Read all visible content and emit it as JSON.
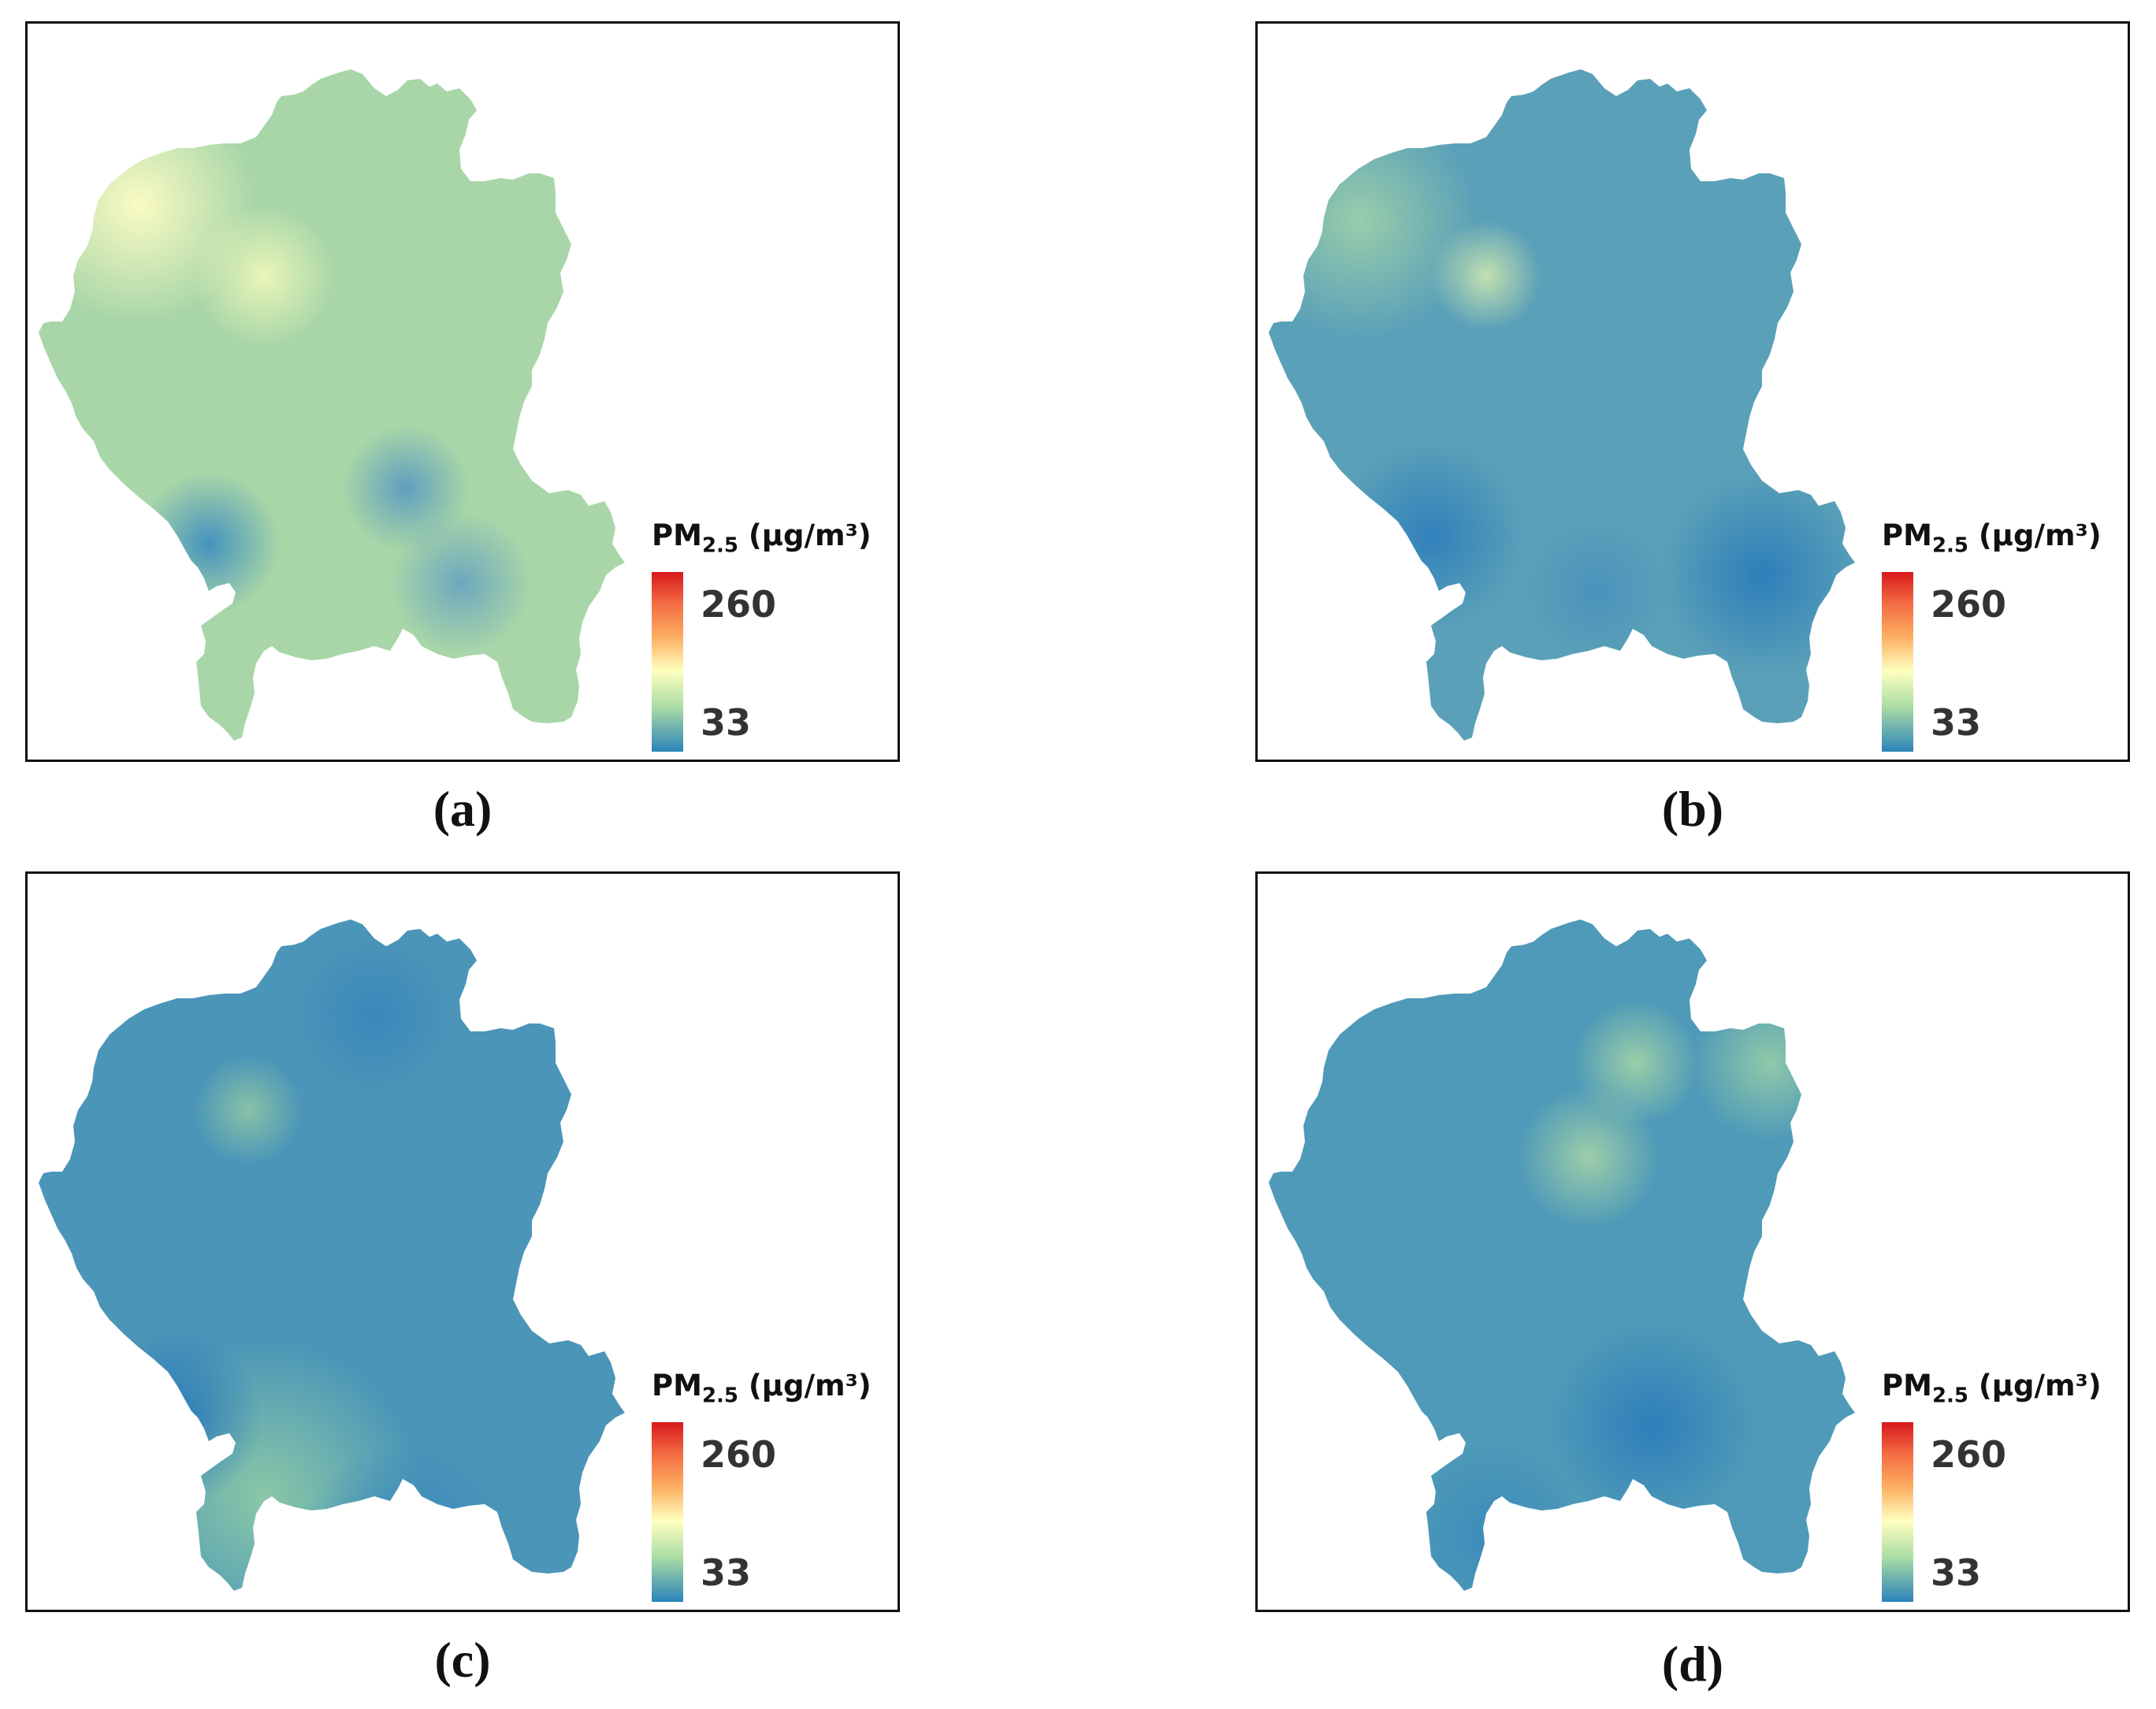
{
  "legend": {
    "title_main": "PM",
    "title_sub": "2.5",
    "title_unit": " (μg/m³)",
    "max_label": "260",
    "min_label": "33"
  },
  "panels": [
    {
      "caption": "(a)",
      "fill": "#a8d6a8",
      "spots": [
        {
          "color": "#fffdc4"
        },
        {
          "color": "#eef7b8"
        },
        {
          "color": "#3f8fbf"
        },
        {
          "color": "#5b9cbf"
        },
        {
          "color": "#6aa5bf"
        }
      ]
    },
    {
      "caption": "(b)",
      "fill": "#5aa0b8",
      "spots": [
        {
          "color": "#9ccfaa"
        },
        {
          "color": "#c9e4b0"
        },
        {
          "color": "#2f7fbb"
        },
        {
          "color": "#2b7dba"
        },
        {
          "color": "#4a92bd"
        }
      ]
    },
    {
      "caption": "(c)",
      "fill": "#4a95b8",
      "spots": [
        {
          "color": "#8ecba6"
        },
        {
          "color": "#8cc4a6"
        },
        {
          "color": "#2b79b8"
        },
        {
          "color": "#3a86bb"
        },
        {
          "color": "#3a88bc"
        }
      ]
    },
    {
      "caption": "(d)",
      "fill": "#4e9ab8",
      "spots": [
        {
          "color": "#9fd1a7"
        },
        {
          "color": "#a2d0a8"
        },
        {
          "color": "#2d7dba"
        },
        {
          "color": "#3c8abb"
        },
        {
          "color": "#94cba8"
        }
      ]
    }
  ]
}
